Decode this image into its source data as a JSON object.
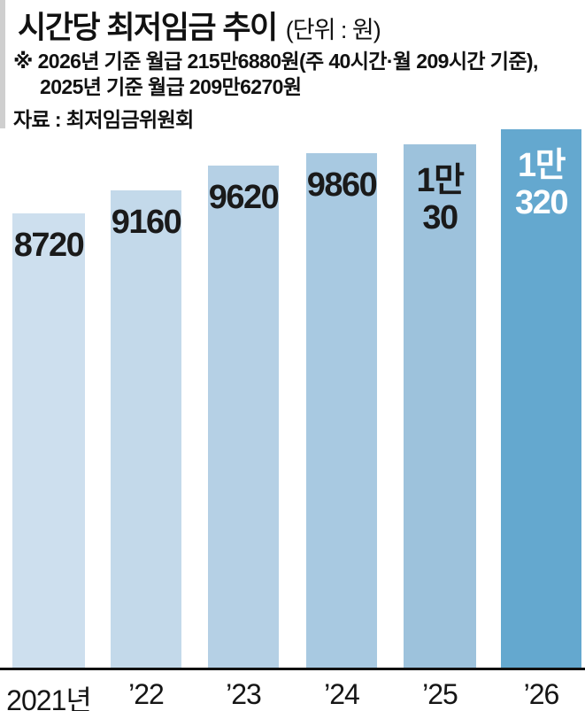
{
  "header": {
    "title": "시간당 최저임금 추이",
    "unit": "(단위 : 원)",
    "note": {
      "marker": "※",
      "line1": "2026년 기준 월급 215만6880원(주 40시간·월 209시간 기준),",
      "line2": "2025년 기준 월급 209만6270원"
    },
    "source": "자료 : 최저임금위원회"
  },
  "chart_data": {
    "type": "bar",
    "title": "시간당 최저임금 추이",
    "unit": "원",
    "categories": [
      "2021년",
      "’22",
      "’23",
      "’24",
      "’25",
      "’26"
    ],
    "values": [
      8720,
      9160,
      9620,
      9860,
      10030,
      10320
    ],
    "label_lines": [
      [
        "8720"
      ],
      [
        "9160"
      ],
      [
        "9620"
      ],
      [
        "9860"
      ],
      [
        "1만",
        "30"
      ],
      [
        "1만",
        "320"
      ]
    ],
    "bar_colors": [
      "#cddfee",
      "#c3d9ea",
      "#b5d0e5",
      "#a8c9e1",
      "#9dc2dc",
      "#64a8cf"
    ],
    "label_colors": [
      "#1a1a1a",
      "#1a1a1a",
      "#1a1a1a",
      "#1a1a1a",
      "#1a1a1a",
      "#ffffff"
    ],
    "ylim": [
      0,
      10320
    ],
    "grid": false,
    "legend": false,
    "y_axis_visible": false,
    "baseline_color": "#111111",
    "highlight_index": 5,
    "accent_color": "#cfcfcf"
  }
}
